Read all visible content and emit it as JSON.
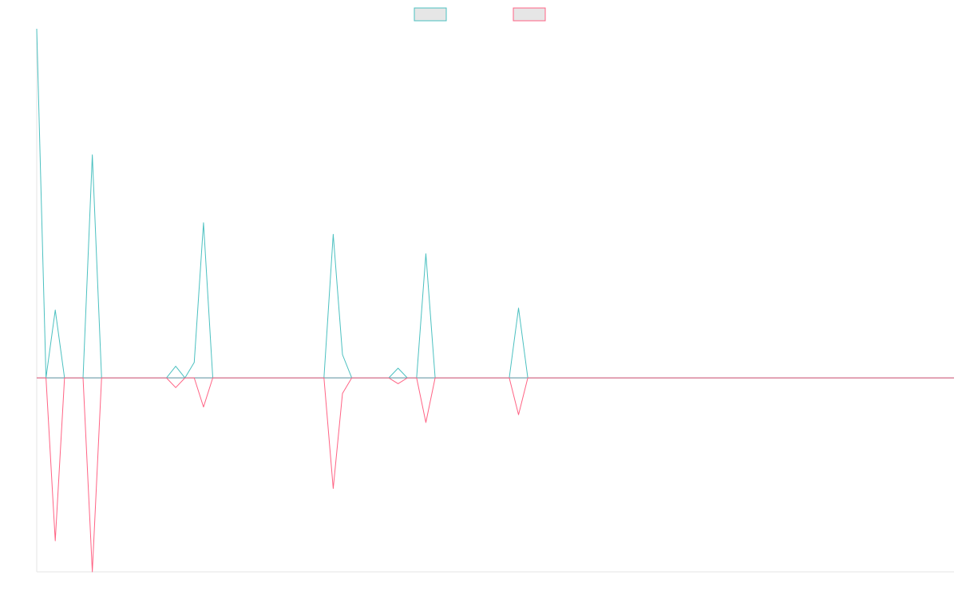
{
  "chart_data": {
    "type": "line",
    "title": "",
    "xlabel": "",
    "ylabel": "",
    "grid": false,
    "legend": {
      "placement": "top-center"
    },
    "x_count": 100,
    "ylim": [
      -1.0,
      1.8
    ],
    "series": [
      {
        "name": "",
        "color": "#4bc0c0",
        "fill": "#e6e6e6",
        "values": [
          1.8,
          0,
          0.35,
          0,
          0,
          0,
          1.15,
          0,
          0,
          0,
          0,
          0,
          0,
          0,
          0,
          0.06,
          0,
          0.08,
          0.8,
          0,
          0,
          0,
          0,
          0,
          0,
          0,
          0,
          0,
          0,
          0,
          0,
          0,
          0.74,
          0.12,
          0,
          0,
          0,
          0,
          0,
          0.05,
          0,
          0,
          0.64,
          0,
          0,
          0,
          0,
          0,
          0,
          0,
          0,
          0,
          0.36,
          0,
          0,
          0,
          0,
          0,
          0,
          0,
          0,
          0,
          0,
          0,
          0,
          0,
          0,
          0,
          0,
          0,
          0,
          0,
          0,
          0,
          0,
          0,
          0,
          0,
          0,
          0,
          0,
          0,
          0,
          0,
          0,
          0,
          0,
          0,
          0,
          0,
          0,
          0,
          0,
          0,
          0,
          0,
          0,
          0,
          0,
          0
        ]
      },
      {
        "name": "",
        "color": "#ff6384",
        "fill": "#e6e6e6",
        "values": [
          0,
          0,
          -0.84,
          0,
          0,
          0,
          -1.0,
          0,
          0,
          0,
          0,
          0,
          0,
          0,
          0,
          -0.05,
          0,
          0,
          -0.15,
          0,
          0,
          0,
          0,
          0,
          0,
          0,
          0,
          0,
          0,
          0,
          0,
          0,
          -0.57,
          -0.08,
          0,
          0,
          0,
          0,
          0,
          -0.03,
          0,
          0,
          -0.23,
          0,
          0,
          0,
          0,
          0,
          0,
          0,
          0,
          0,
          -0.19,
          0,
          0,
          0,
          0,
          0,
          0,
          0,
          0,
          0,
          0,
          0,
          0,
          0,
          0,
          0,
          0,
          0,
          0,
          0,
          0,
          0,
          0,
          0,
          0,
          0,
          0,
          0,
          0,
          0,
          0,
          0,
          0,
          0,
          0,
          0,
          0,
          0,
          0,
          0,
          0,
          0,
          0,
          0,
          0,
          0,
          0,
          0
        ]
      }
    ]
  }
}
